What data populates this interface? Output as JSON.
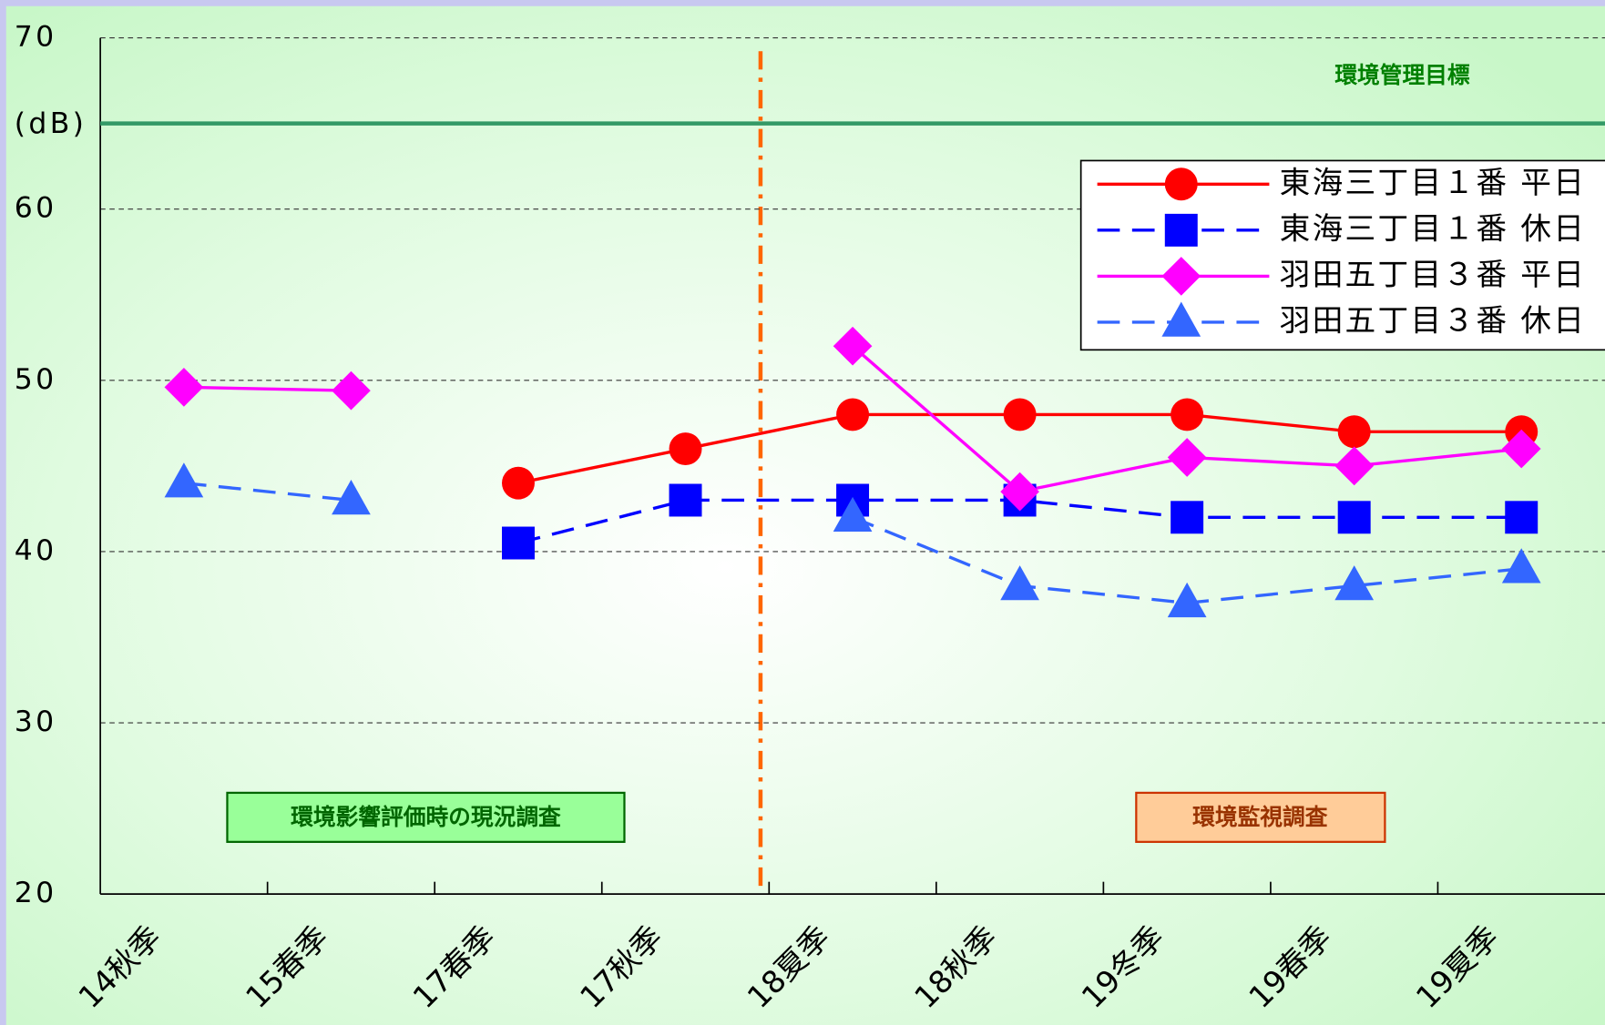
{
  "chart_data": {
    "type": "line",
    "y_label": "(dB)",
    "categories": [
      "14秋季",
      "15春季",
      "17春季",
      "17秋季",
      "18夏季",
      "18秋季",
      "19冬季",
      "19春季",
      "19夏季"
    ],
    "series": [
      {
        "name": "東海三丁目１番 平日",
        "color": "#ff0000",
        "marker": "circle",
        "dashed": false,
        "values": [
          null,
          null,
          44,
          46,
          48,
          48,
          48,
          47,
          47
        ]
      },
      {
        "name": "東海三丁目１番 休日",
        "color": "#0000ff",
        "marker": "square",
        "dashed": true,
        "values": [
          null,
          null,
          40.5,
          43,
          43,
          43,
          42,
          42,
          42
        ]
      },
      {
        "name": "羽田五丁目３番 平日",
        "color": "#ff00ff",
        "marker": "diamond",
        "dashed": false,
        "values": [
          49.6,
          49.4,
          null,
          null,
          52,
          43.5,
          45.5,
          45,
          46
        ]
      },
      {
        "name": "羽田五丁目３番 休日",
        "color": "#3366ff",
        "marker": "triangle",
        "dashed": true,
        "values": [
          44,
          43,
          null,
          null,
          42,
          38,
          37,
          38,
          39
        ]
      }
    ],
    "target": {
      "label": "環境管理目標",
      "value": 65,
      "color": "#339966"
    },
    "annotations": [
      "環境影響評価時の現況調査",
      "環境監視調査"
    ],
    "ylim": [
      20,
      70
    ],
    "yticks": [
      20,
      30,
      40,
      50,
      60,
      70
    ],
    "grid": true,
    "legend": "upper right"
  }
}
